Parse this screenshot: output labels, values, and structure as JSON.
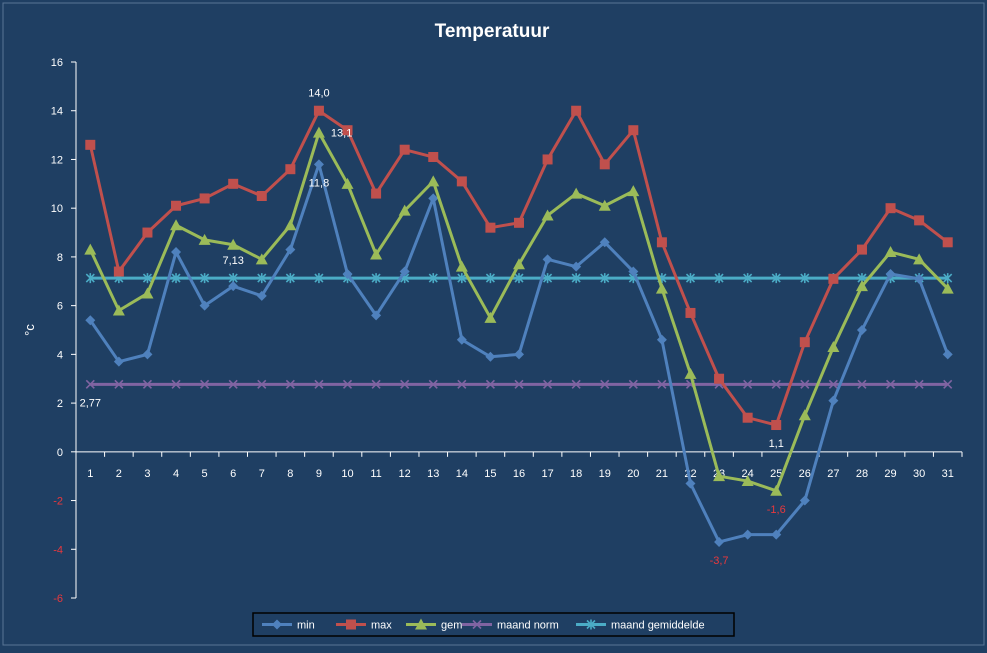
{
  "chart_data": {
    "type": "line",
    "title": "Temperatuur",
    "ylabel": "°c",
    "xlabel": "",
    "ylim": [
      -6,
      16
    ],
    "yticks": [
      -6,
      -4,
      -2,
      0,
      2,
      4,
      6,
      8,
      10,
      12,
      14,
      16
    ],
    "categories": [
      "1",
      "2",
      "3",
      "4",
      "5",
      "6",
      "7",
      "8",
      "9",
      "10",
      "11",
      "12",
      "13",
      "14",
      "15",
      "16",
      "17",
      "18",
      "19",
      "20",
      "21",
      "22",
      "23",
      "24",
      "25",
      "26",
      "27",
      "28",
      "29",
      "30",
      "31"
    ],
    "legend_position": "bottom",
    "grid": false,
    "colors": {
      "background": "#1F3F63",
      "axis": "#FFFFFF",
      "title": "#FFFFFF",
      "negative_label": "#E8383D"
    },
    "series": [
      {
        "name": "min",
        "color": "#4F81BD",
        "marker": "diamond",
        "values": [
          5.4,
          3.7,
          4.0,
          8.2,
          6.0,
          6.8,
          6.4,
          8.3,
          11.8,
          7.3,
          5.6,
          7.4,
          10.4,
          4.6,
          3.9,
          4.0,
          7.9,
          7.6,
          8.6,
          7.4,
          4.6,
          -1.3,
          -3.7,
          -3.4,
          -3.4,
          -2.0,
          2.1,
          5.0,
          7.3,
          7.1,
          4.0
        ]
      },
      {
        "name": "max",
        "color": "#C0504D",
        "marker": "square",
        "values": [
          12.6,
          7.4,
          9.0,
          10.1,
          10.4,
          11.0,
          10.5,
          11.6,
          14.0,
          13.2,
          10.6,
          12.4,
          12.1,
          11.1,
          9.2,
          9.4,
          12.0,
          14.0,
          11.8,
          13.2,
          8.6,
          5.7,
          3.0,
          1.4,
          1.1,
          4.5,
          7.1,
          8.3,
          10.0,
          9.5,
          8.6
        ]
      },
      {
        "name": "gem",
        "color": "#9BBB59",
        "marker": "triangle",
        "values": [
          8.3,
          5.8,
          6.5,
          9.3,
          8.7,
          8.5,
          7.9,
          9.3,
          13.1,
          11.0,
          8.1,
          9.9,
          11.1,
          7.6,
          5.5,
          7.7,
          9.7,
          10.6,
          10.1,
          10.7,
          6.7,
          3.2,
          -1.0,
          -1.2,
          -1.6,
          1.5,
          4.3,
          6.8,
          8.2,
          7.9,
          6.7
        ]
      },
      {
        "name": "maand norm",
        "color": "#8064A2",
        "marker": "x",
        "values": [
          2.77,
          2.77,
          2.77,
          2.77,
          2.77,
          2.77,
          2.77,
          2.77,
          2.77,
          2.77,
          2.77,
          2.77,
          2.77,
          2.77,
          2.77,
          2.77,
          2.77,
          2.77,
          2.77,
          2.77,
          2.77,
          2.77,
          2.77,
          2.77,
          2.77,
          2.77,
          2.77,
          2.77,
          2.77,
          2.77,
          2.77
        ]
      },
      {
        "name": "maand gemiddelde",
        "color": "#4BACC6",
        "marker": "star",
        "values": [
          7.13,
          7.13,
          7.13,
          7.13,
          7.13,
          7.13,
          7.13,
          7.13,
          7.13,
          7.13,
          7.13,
          7.13,
          7.13,
          7.13,
          7.13,
          7.13,
          7.13,
          7.13,
          7.13,
          7.13,
          7.13,
          7.13,
          7.13,
          7.13,
          7.13,
          7.13,
          7.13,
          7.13,
          7.13,
          7.13,
          7.13
        ]
      }
    ],
    "annotations": [
      {
        "text": "14,0",
        "series": "max",
        "x": "9",
        "y": 14.0,
        "placement": "above",
        "tone": "normal"
      },
      {
        "text": "13,1",
        "series": "gem",
        "x": "9",
        "y": 13.1,
        "placement": "right",
        "tone": "normal"
      },
      {
        "text": "11,8",
        "series": "min",
        "x": "9",
        "y": 11.8,
        "placement": "below",
        "tone": "normal"
      },
      {
        "text": "7,13",
        "series": "maand gemiddelde",
        "x": "6",
        "y": 7.13,
        "placement": "above",
        "tone": "normal"
      },
      {
        "text": "2,77",
        "series": "maand norm",
        "x": "1",
        "y": 2.77,
        "placement": "below",
        "tone": "normal"
      },
      {
        "text": "1,1",
        "series": "max",
        "x": "25",
        "y": 1.1,
        "placement": "below",
        "tone": "normal"
      },
      {
        "text": "-1,6",
        "series": "gem",
        "x": "25",
        "y": -1.6,
        "placement": "below",
        "tone": "negative"
      },
      {
        "text": "-3,7",
        "series": "min",
        "x": "23",
        "y": -3.7,
        "placement": "below",
        "tone": "negative"
      }
    ]
  }
}
